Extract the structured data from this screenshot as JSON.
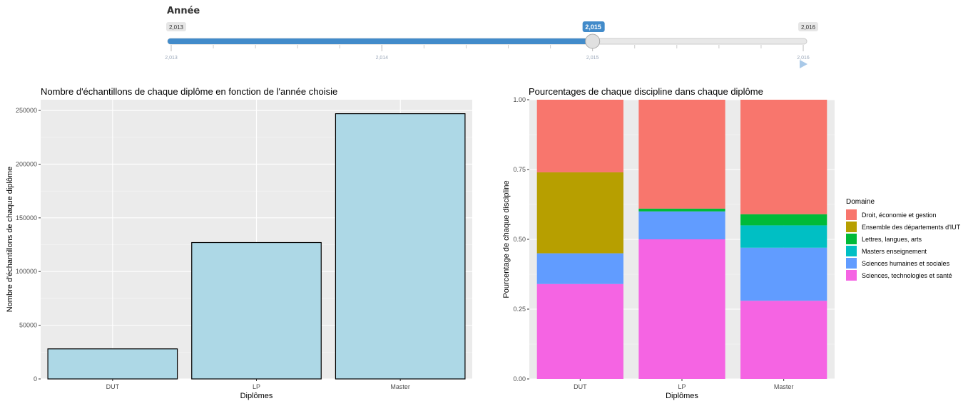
{
  "slider": {
    "label": "Année",
    "min_label": "2,013",
    "max_label": "2,016",
    "value_label": "2,015",
    "min": 2013,
    "max": 2016,
    "value": 2015,
    "grid_labels": [
      "2,013",
      "2,014",
      "2,015",
      "2,016"
    ],
    "grid_values": [
      2013,
      2014,
      2015,
      2016
    ],
    "accent_color": "#428bca"
  },
  "chart_data": [
    {
      "type": "bar",
      "title": "Nombre d'échantillons de chaque diplôme en fonction de l'année choisie",
      "xlabel": "Diplômes",
      "ylabel": "Nombre d'échantillons de chaque diplôme",
      "categories": [
        "DUT",
        "LP",
        "Master"
      ],
      "values": [
        28000,
        127000,
        247000
      ],
      "ylim": [
        0,
        260000
      ],
      "yticks": [
        0,
        50000,
        100000,
        150000,
        200000,
        250000
      ],
      "ytick_labels": [
        "0",
        "50000",
        "100000",
        "150000",
        "200000",
        "250000"
      ],
      "bar_color": "#add8e6",
      "grid": true
    },
    {
      "type": "bar",
      "stacked": true,
      "title": "Pourcentages de chaque discipline dans chaque diplôme",
      "xlabel": "Diplômes",
      "ylabel": "Pourcentage de chaque discipline",
      "categories": [
        "DUT",
        "LP",
        "Master"
      ],
      "ylim": [
        0,
        1
      ],
      "yticks": [
        0,
        0.25,
        0.5,
        0.75,
        1
      ],
      "ytick_labels": [
        "0.00",
        "0.25",
        "0.50",
        "0.75",
        "1.00"
      ],
      "legend_title": "Domaine",
      "legend_position": "right",
      "series": [
        {
          "name": "Sciences, technologies et santé",
          "color": "#f564e3",
          "values": [
            0.34,
            0.5,
            0.28
          ]
        },
        {
          "name": "Sciences humaines et sociales",
          "color": "#619cff",
          "values": [
            0.11,
            0.1,
            0.19
          ]
        },
        {
          "name": "Masters enseignement",
          "color": "#00bfc4",
          "values": [
            0.0,
            0.0,
            0.08
          ]
        },
        {
          "name": "Lettres, langues, arts",
          "color": "#00ba38",
          "values": [
            0.0,
            0.01,
            0.04
          ]
        },
        {
          "name": "Ensemble des départements d'IUT",
          "color": "#b79f00",
          "values": [
            0.29,
            0.0,
            0.0
          ]
        },
        {
          "name": "Droit, économie et gestion",
          "color": "#f8766d",
          "values": [
            0.26,
            0.39,
            0.41
          ]
        }
      ],
      "legend_order": [
        "Droit, économie et gestion",
        "Ensemble des départements d'IUT",
        "Lettres, langues, arts",
        "Masters enseignement",
        "Sciences humaines et sociales",
        "Sciences, technologies et santé"
      ],
      "grid": true
    }
  ]
}
